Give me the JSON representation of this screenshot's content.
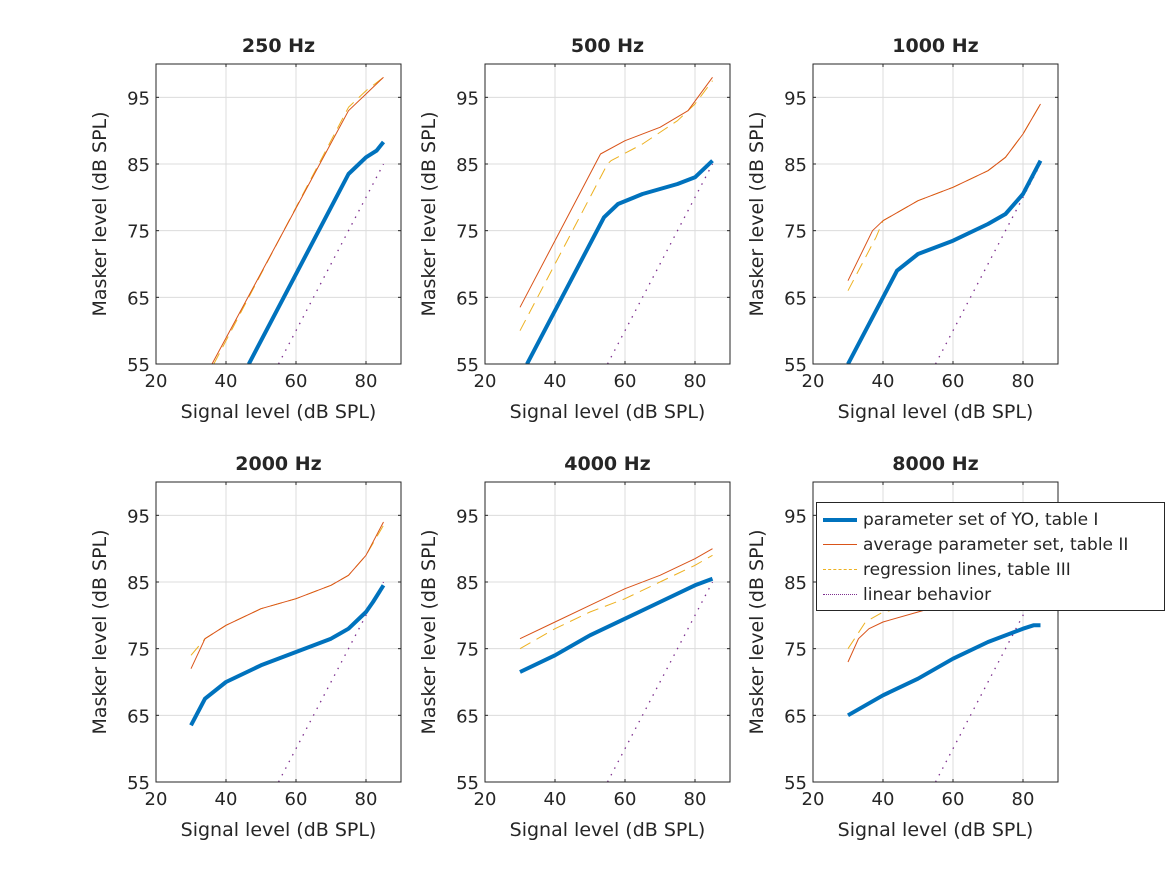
{
  "chart_data": [
    {
      "type": "line",
      "title": "250 Hz",
      "xlabel": "Signal level (dB SPL)",
      "ylabel": "Masker level (dB SPL)",
      "xlim": [
        20,
        90
      ],
      "ylim": [
        55,
        100
      ],
      "xticks": [
        20,
        40,
        60,
        80
      ],
      "yticks": [
        55,
        65,
        75,
        85,
        95
      ],
      "grid": true,
      "series": [
        {
          "name": "parameter set of YO, table I",
          "x": [
            46.5,
            75,
            78,
            80,
            83,
            85
          ],
          "y": [
            55,
            83.5,
            85,
            86,
            87,
            88.3
          ]
        },
        {
          "name": "average parameter set, table II",
          "x": [
            36,
            75,
            80,
            85
          ],
          "y": [
            55,
            93,
            95.5,
            98
          ]
        },
        {
          "name": "regression lines, table III",
          "x": [
            36.5,
            75,
            80,
            85
          ],
          "y": [
            55,
            93.5,
            96,
            98
          ]
        },
        {
          "name": "linear behavior",
          "x": [
            55,
            85
          ],
          "y": [
            55,
            85
          ]
        }
      ]
    },
    {
      "type": "line",
      "title": "500 Hz",
      "xlabel": "Signal level (dB SPL)",
      "ylabel": "Masker level (dB SPL)",
      "xlim": [
        20,
        90
      ],
      "ylim": [
        55,
        100
      ],
      "xticks": [
        20,
        40,
        60,
        80
      ],
      "yticks": [
        55,
        65,
        75,
        85,
        95
      ],
      "grid": true,
      "series": [
        {
          "name": "parameter set of YO, table I",
          "x": [
            32,
            54,
            58,
            65,
            75,
            80,
            85
          ],
          "y": [
            55,
            77,
            79,
            80.5,
            82,
            83,
            85.5
          ]
        },
        {
          "name": "average parameter set, table II",
          "x": [
            30,
            53,
            60,
            70,
            78,
            85
          ],
          "y": [
            63.5,
            86.5,
            88.5,
            90.5,
            93,
            98
          ]
        },
        {
          "name": "regression lines, table III",
          "x": [
            30,
            55,
            56,
            65,
            75,
            80,
            85
          ],
          "y": [
            60,
            85,
            85.5,
            88,
            91.5,
            94,
            97.5
          ]
        },
        {
          "name": "linear behavior",
          "x": [
            55,
            85
          ],
          "y": [
            55,
            85
          ]
        }
      ]
    },
    {
      "type": "line",
      "title": "1000 Hz",
      "xlabel": "Signal level (dB SPL)",
      "ylabel": "Masker level (dB SPL)",
      "xlim": [
        20,
        90
      ],
      "ylim": [
        55,
        100
      ],
      "xticks": [
        20,
        40,
        60,
        80
      ],
      "yticks": [
        55,
        65,
        75,
        85,
        95
      ],
      "grid": true,
      "series": [
        {
          "name": "parameter set of YO, table I",
          "x": [
            30,
            44,
            50,
            60,
            70,
            75,
            80,
            85
          ],
          "y": [
            55,
            69,
            71.5,
            73.5,
            76,
            77.5,
            80.5,
            85.5
          ]
        },
        {
          "name": "average parameter set, table II",
          "x": [
            30,
            37,
            40,
            50,
            60,
            70,
            75,
            80,
            85
          ],
          "y": [
            67.5,
            75,
            76.5,
            79.5,
            81.5,
            84,
            86,
            89.5,
            94
          ]
        },
        {
          "name": "regression lines, table III",
          "x": [
            30,
            38,
            40,
            50,
            60,
            70,
            75,
            80,
            85
          ],
          "y": [
            66,
            74,
            76.5,
            79.5,
            81.5,
            84,
            86,
            89.5,
            94
          ]
        },
        {
          "name": "linear behavior",
          "x": [
            55,
            85
          ],
          "y": [
            55,
            85
          ]
        }
      ]
    },
    {
      "type": "line",
      "title": "2000 Hz",
      "xlabel": "Signal level (dB SPL)",
      "ylabel": "Masker level (dB SPL)",
      "xlim": [
        20,
        90
      ],
      "ylim": [
        55,
        100
      ],
      "xticks": [
        20,
        40,
        60,
        80
      ],
      "yticks": [
        55,
        65,
        75,
        85,
        95
      ],
      "grid": true,
      "series": [
        {
          "name": "parameter set of YO, table I",
          "x": [
            30,
            34,
            40,
            50,
            60,
            70,
            75,
            80,
            82,
            85
          ],
          "y": [
            63.5,
            67.5,
            70,
            72.5,
            74.5,
            76.5,
            78,
            80.5,
            82,
            84.5
          ]
        },
        {
          "name": "average parameter set, table II",
          "x": [
            30,
            34,
            40,
            50,
            60,
            70,
            75,
            80,
            85
          ],
          "y": [
            72,
            76.5,
            78.5,
            81,
            82.5,
            84.5,
            86,
            89,
            94
          ]
        },
        {
          "name": "regression lines, table III",
          "x": [
            30,
            34,
            40,
            50,
            60,
            70,
            75,
            80,
            85
          ],
          "y": [
            74,
            76.5,
            78.5,
            81,
            82.5,
            84.5,
            86,
            89,
            93.5
          ]
        },
        {
          "name": "linear behavior",
          "x": [
            55,
            85
          ],
          "y": [
            55,
            85
          ]
        }
      ]
    },
    {
      "type": "line",
      "title": "4000 Hz",
      "xlabel": "Signal level (dB SPL)",
      "ylabel": "Masker level (dB SPL)",
      "xlim": [
        20,
        90
      ],
      "ylim": [
        55,
        100
      ],
      "xticks": [
        20,
        40,
        60,
        80
      ],
      "yticks": [
        55,
        65,
        75,
        85,
        95
      ],
      "grid": true,
      "series": [
        {
          "name": "parameter set of YO, table I",
          "x": [
            30,
            40,
            50,
            60,
            70,
            80,
            85
          ],
          "y": [
            71.5,
            74,
            77,
            79.5,
            82,
            84.5,
            85.5
          ]
        },
        {
          "name": "average parameter set, table II",
          "x": [
            30,
            40,
            50,
            60,
            70,
            80,
            85
          ],
          "y": [
            76.5,
            79,
            81.5,
            84,
            86,
            88.5,
            90
          ]
        },
        {
          "name": "regression lines, table III",
          "x": [
            30,
            40,
            50,
            60,
            70,
            80,
            85
          ],
          "y": [
            75,
            78,
            80.5,
            82.5,
            85,
            87.5,
            89
          ]
        },
        {
          "name": "linear behavior",
          "x": [
            55,
            85
          ],
          "y": [
            55,
            85
          ]
        }
      ]
    },
    {
      "type": "line",
      "title": "8000 Hz",
      "xlabel": "Signal level (dB SPL)",
      "ylabel": "Masker level (dB SPL)",
      "xlim": [
        20,
        90
      ],
      "ylim": [
        55,
        100
      ],
      "xticks": [
        20,
        40,
        60,
        80
      ],
      "yticks": [
        55,
        65,
        75,
        85,
        95
      ],
      "grid": true,
      "series": [
        {
          "name": "parameter set of YO, table I",
          "x": [
            30,
            40,
            50,
            60,
            70,
            80,
            83,
            85
          ],
          "y": [
            65,
            68,
            70.5,
            73.5,
            76,
            78,
            78.5,
            78.5
          ]
        },
        {
          "name": "average parameter set, table II",
          "x": [
            30,
            33,
            36,
            40,
            50,
            60,
            70,
            80,
            85
          ],
          "y": [
            73,
            76.5,
            78,
            79,
            80.5,
            82,
            84,
            87,
            89
          ]
        },
        {
          "name": "regression lines, table III",
          "x": [
            30,
            35,
            40,
            50,
            60,
            70,
            80,
            85
          ],
          "y": [
            75,
            79,
            80.5,
            81.5,
            83,
            85,
            87.5,
            89.5
          ]
        },
        {
          "name": "linear behavior",
          "x": [
            55,
            85
          ],
          "y": [
            55,
            85
          ]
        }
      ]
    }
  ],
  "legend": {
    "placement": "inside-right",
    "entries": [
      {
        "label": "parameter set of YO, table I",
        "color": "#0072BD",
        "style": "solid-thick"
      },
      {
        "label": "average parameter set, table II",
        "color": "#D95319",
        "style": "solid-thin"
      },
      {
        "label": "regression lines, table III",
        "color": "#EDB120",
        "style": "dashed"
      },
      {
        "label": "linear behavior",
        "color": "#7E2F8E",
        "style": "dotted"
      }
    ]
  }
}
